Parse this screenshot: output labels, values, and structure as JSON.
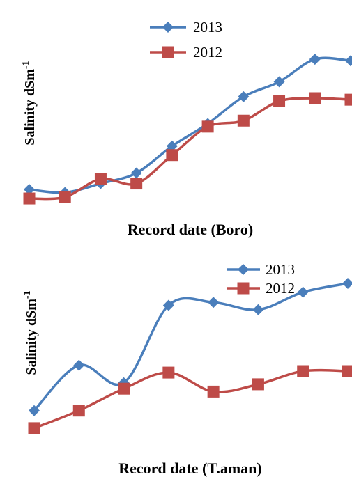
{
  "chart_data": [
    {
      "type": "line",
      "xlabel": "Record date (Boro)",
      "ylabel": "Salinity dSm",
      "ylabel_sup": "-1",
      "ylim": [
        0,
        12
      ],
      "x_count": 10,
      "legend_position": "top-center",
      "grid": false,
      "series": [
        {
          "name": "2013",
          "color": "#4a7ebb",
          "marker": "diamond",
          "values": [
            1.9,
            1.7,
            2.3,
            3.0,
            4.8,
            6.3,
            8.1,
            9.1,
            10.6,
            10.5
          ]
        },
        {
          "name": "2012",
          "color": "#be4b48",
          "marker": "square",
          "values": [
            1.3,
            1.4,
            2.6,
            2.3,
            4.2,
            6.1,
            6.5,
            7.8,
            8.0,
            7.9
          ]
        }
      ]
    },
    {
      "type": "line",
      "xlabel": "Record date (T.aman)",
      "ylabel": "Salinity dSm",
      "ylabel_sup": "-1",
      "ylim": [
        0,
        12
      ],
      "x_count": 8,
      "legend_position": "top-right",
      "grid": false,
      "series": [
        {
          "name": "2013",
          "color": "#4a7ebb",
          "marker": "diamond",
          "values": [
            2.3,
            5.4,
            4.2,
            9.5,
            9.7,
            9.2,
            10.4,
            11.0
          ]
        },
        {
          "name": "2012",
          "color": "#be4b48",
          "marker": "square",
          "values": [
            1.1,
            2.3,
            3.8,
            4.9,
            3.6,
            4.1,
            5.0,
            5.0
          ]
        }
      ]
    }
  ]
}
